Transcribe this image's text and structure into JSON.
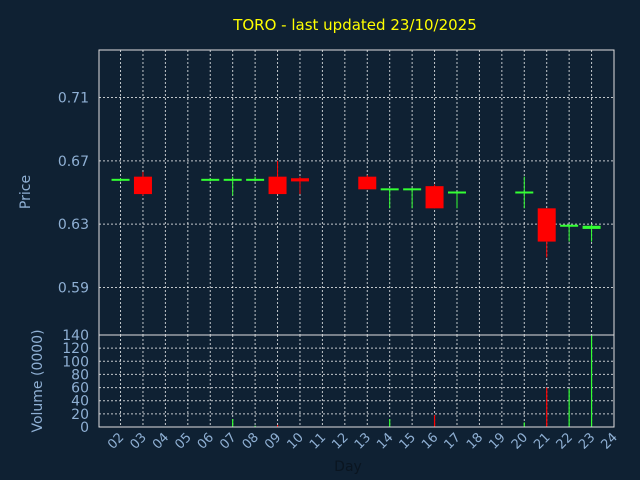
{
  "chart_data": {
    "type": "candlestick",
    "title": "TORO - last updated 23/10/2025",
    "xlabel": "Day",
    "x_ticks": [
      "02",
      "03",
      "04",
      "05",
      "06",
      "07",
      "08",
      "09",
      "10",
      "11",
      "12",
      "13",
      "14",
      "15",
      "16",
      "17",
      "18",
      "19",
      "20",
      "21",
      "22",
      "23",
      "24"
    ],
    "price_panel": {
      "ylabel": "Price",
      "ylim": [
        0.56,
        0.74
      ],
      "y_ticks": [
        "0.59",
        "0.63",
        "0.67",
        "0.71"
      ],
      "y_tick_values": [
        0.59,
        0.63,
        0.67,
        0.71
      ],
      "grid": true
    },
    "volume_panel": {
      "ylabel": "Volume (0000)",
      "ylim": [
        0,
        140
      ],
      "y_ticks": [
        "0",
        "20",
        "40",
        "60",
        "80",
        "100",
        "120",
        "140"
      ],
      "y_tick_values": [
        0,
        20,
        40,
        60,
        80,
        100,
        120,
        140
      ],
      "grid": true
    },
    "candles": [
      {
        "day": 2.0,
        "open": 0.658,
        "high": 0.659,
        "low": 0.657,
        "close": 0.658,
        "volume": 0,
        "color": "green"
      },
      {
        "day": 3.0,
        "open": 0.66,
        "high": 0.663,
        "low": 0.648,
        "close": 0.649,
        "volume": 0,
        "color": "red"
      },
      {
        "day": 6.0,
        "open": 0.658,
        "high": 0.659,
        "low": 0.657,
        "close": 0.658,
        "volume": 0,
        "color": "green"
      },
      {
        "day": 7.0,
        "open": 0.658,
        "high": 0.66,
        "low": 0.648,
        "close": 0.658,
        "volume": 12,
        "color": "green"
      },
      {
        "day": 8.0,
        "open": 0.658,
        "high": 0.66,
        "low": 0.657,
        "close": 0.658,
        "volume": 2,
        "color": "green"
      },
      {
        "day": 9.0,
        "open": 0.66,
        "high": 0.67,
        "low": 0.649,
        "close": 0.649,
        "volume": 3,
        "color": "red"
      },
      {
        "day": 10.0,
        "open": 0.659,
        "high": 0.66,
        "low": 0.649,
        "close": 0.657,
        "volume": 0,
        "color": "red"
      },
      {
        "day": 13.0,
        "open": 0.66,
        "high": 0.661,
        "low": 0.652,
        "close": 0.652,
        "volume": 0,
        "color": "red"
      },
      {
        "day": 14.0,
        "open": 0.652,
        "high": 0.652,
        "low": 0.64,
        "close": 0.652,
        "volume": 12,
        "color": "green"
      },
      {
        "day": 15.0,
        "open": 0.652,
        "high": 0.653,
        "low": 0.64,
        "close": 0.652,
        "volume": 0,
        "color": "green"
      },
      {
        "day": 16.0,
        "open": 0.654,
        "high": 0.655,
        "low": 0.64,
        "close": 0.64,
        "volume": 18,
        "color": "red"
      },
      {
        "day": 17.0,
        "open": 0.65,
        "high": 0.65,
        "low": 0.64,
        "close": 0.65,
        "volume": 0,
        "color": "green"
      },
      {
        "day": 20.0,
        "open": 0.65,
        "high": 0.66,
        "low": 0.64,
        "close": 0.65,
        "volume": 7,
        "color": "green"
      },
      {
        "day": 21.0,
        "open": 0.64,
        "high": 0.64,
        "low": 0.609,
        "close": 0.619,
        "volume": 60,
        "color": "red"
      },
      {
        "day": 22.0,
        "open": 0.629,
        "high": 0.63,
        "low": 0.619,
        "close": 0.629,
        "volume": 58,
        "color": "green"
      },
      {
        "day": 23.0,
        "open": 0.627,
        "high": 0.63,
        "low": 0.619,
        "close": 0.629,
        "volume": 140,
        "color": "green"
      }
    ],
    "colors": {
      "background": "#0f2133",
      "up": "#33ff33",
      "down": "#ff0000",
      "title": "#ffff00",
      "axis_text": "#8fb0d4",
      "frame": "#e0e0e0"
    }
  }
}
